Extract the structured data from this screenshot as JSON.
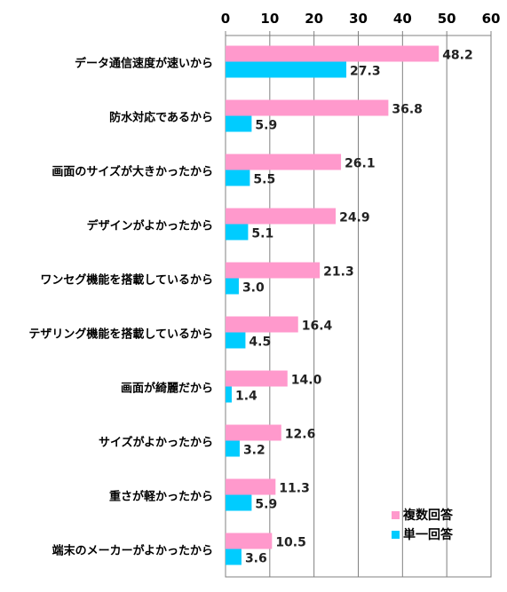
{
  "chart_data": {
    "type": "bar",
    "orientation": "horizontal",
    "categories": [
      "データ通信速度が速いから",
      "防水対応であるから",
      "画面のサイズが大きかったから",
      "デザインがよかったから",
      "ワンセグ機能を搭載しているから",
      "テザリング機能を搭載しているから",
      "画面が綺麗だから",
      "サイズがよかったから",
      "重さが軽かったから",
      "端末のメーカーがよかったから"
    ],
    "series": [
      {
        "name": "複数回答",
        "color": "#ff99cc",
        "values": [
          48.2,
          36.8,
          26.1,
          24.9,
          21.3,
          16.4,
          14.0,
          12.6,
          11.3,
          10.5
        ]
      },
      {
        "name": "単一回答",
        "color": "#00ccff",
        "values": [
          27.3,
          5.9,
          5.5,
          5.1,
          3.0,
          4.5,
          1.4,
          3.2,
          5.9,
          3.6
        ]
      }
    ],
    "xlim": [
      0,
      60
    ],
    "xticks": [
      0,
      10,
      20,
      30,
      40,
      50,
      60
    ],
    "grid": true,
    "legend_position": "bottom-right",
    "axis_position": "top"
  }
}
